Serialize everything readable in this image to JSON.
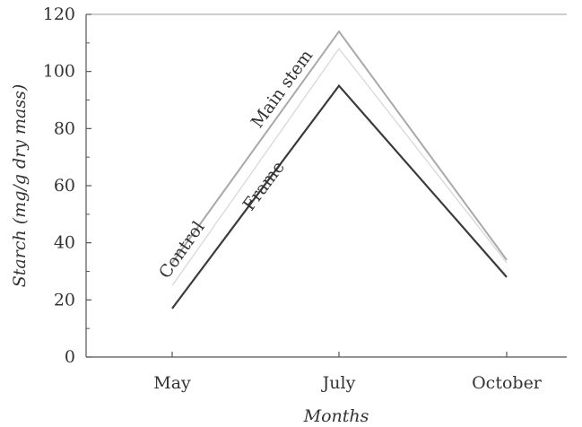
{
  "chart_data": {
    "type": "line",
    "categories": [
      "May",
      "July",
      "October"
    ],
    "series": [
      {
        "name": "Main stem",
        "values": [
          33,
          114,
          34
        ],
        "color": "#a9a9a9"
      },
      {
        "name": "Control",
        "values": [
          25,
          108,
          33
        ],
        "color": "#d8d8d8"
      },
      {
        "name": "Frame",
        "values": [
          17,
          95,
          28
        ],
        "color": "#3a3a3a"
      }
    ],
    "title": "",
    "xlabel": "Months",
    "ylabel": "Starch (mg/g dry mass)",
    "ylim": [
      0,
      120
    ],
    "yticks": [
      0,
      20,
      40,
      60,
      80,
      100,
      120
    ],
    "grid": false,
    "legend": "inline labels on lines"
  }
}
